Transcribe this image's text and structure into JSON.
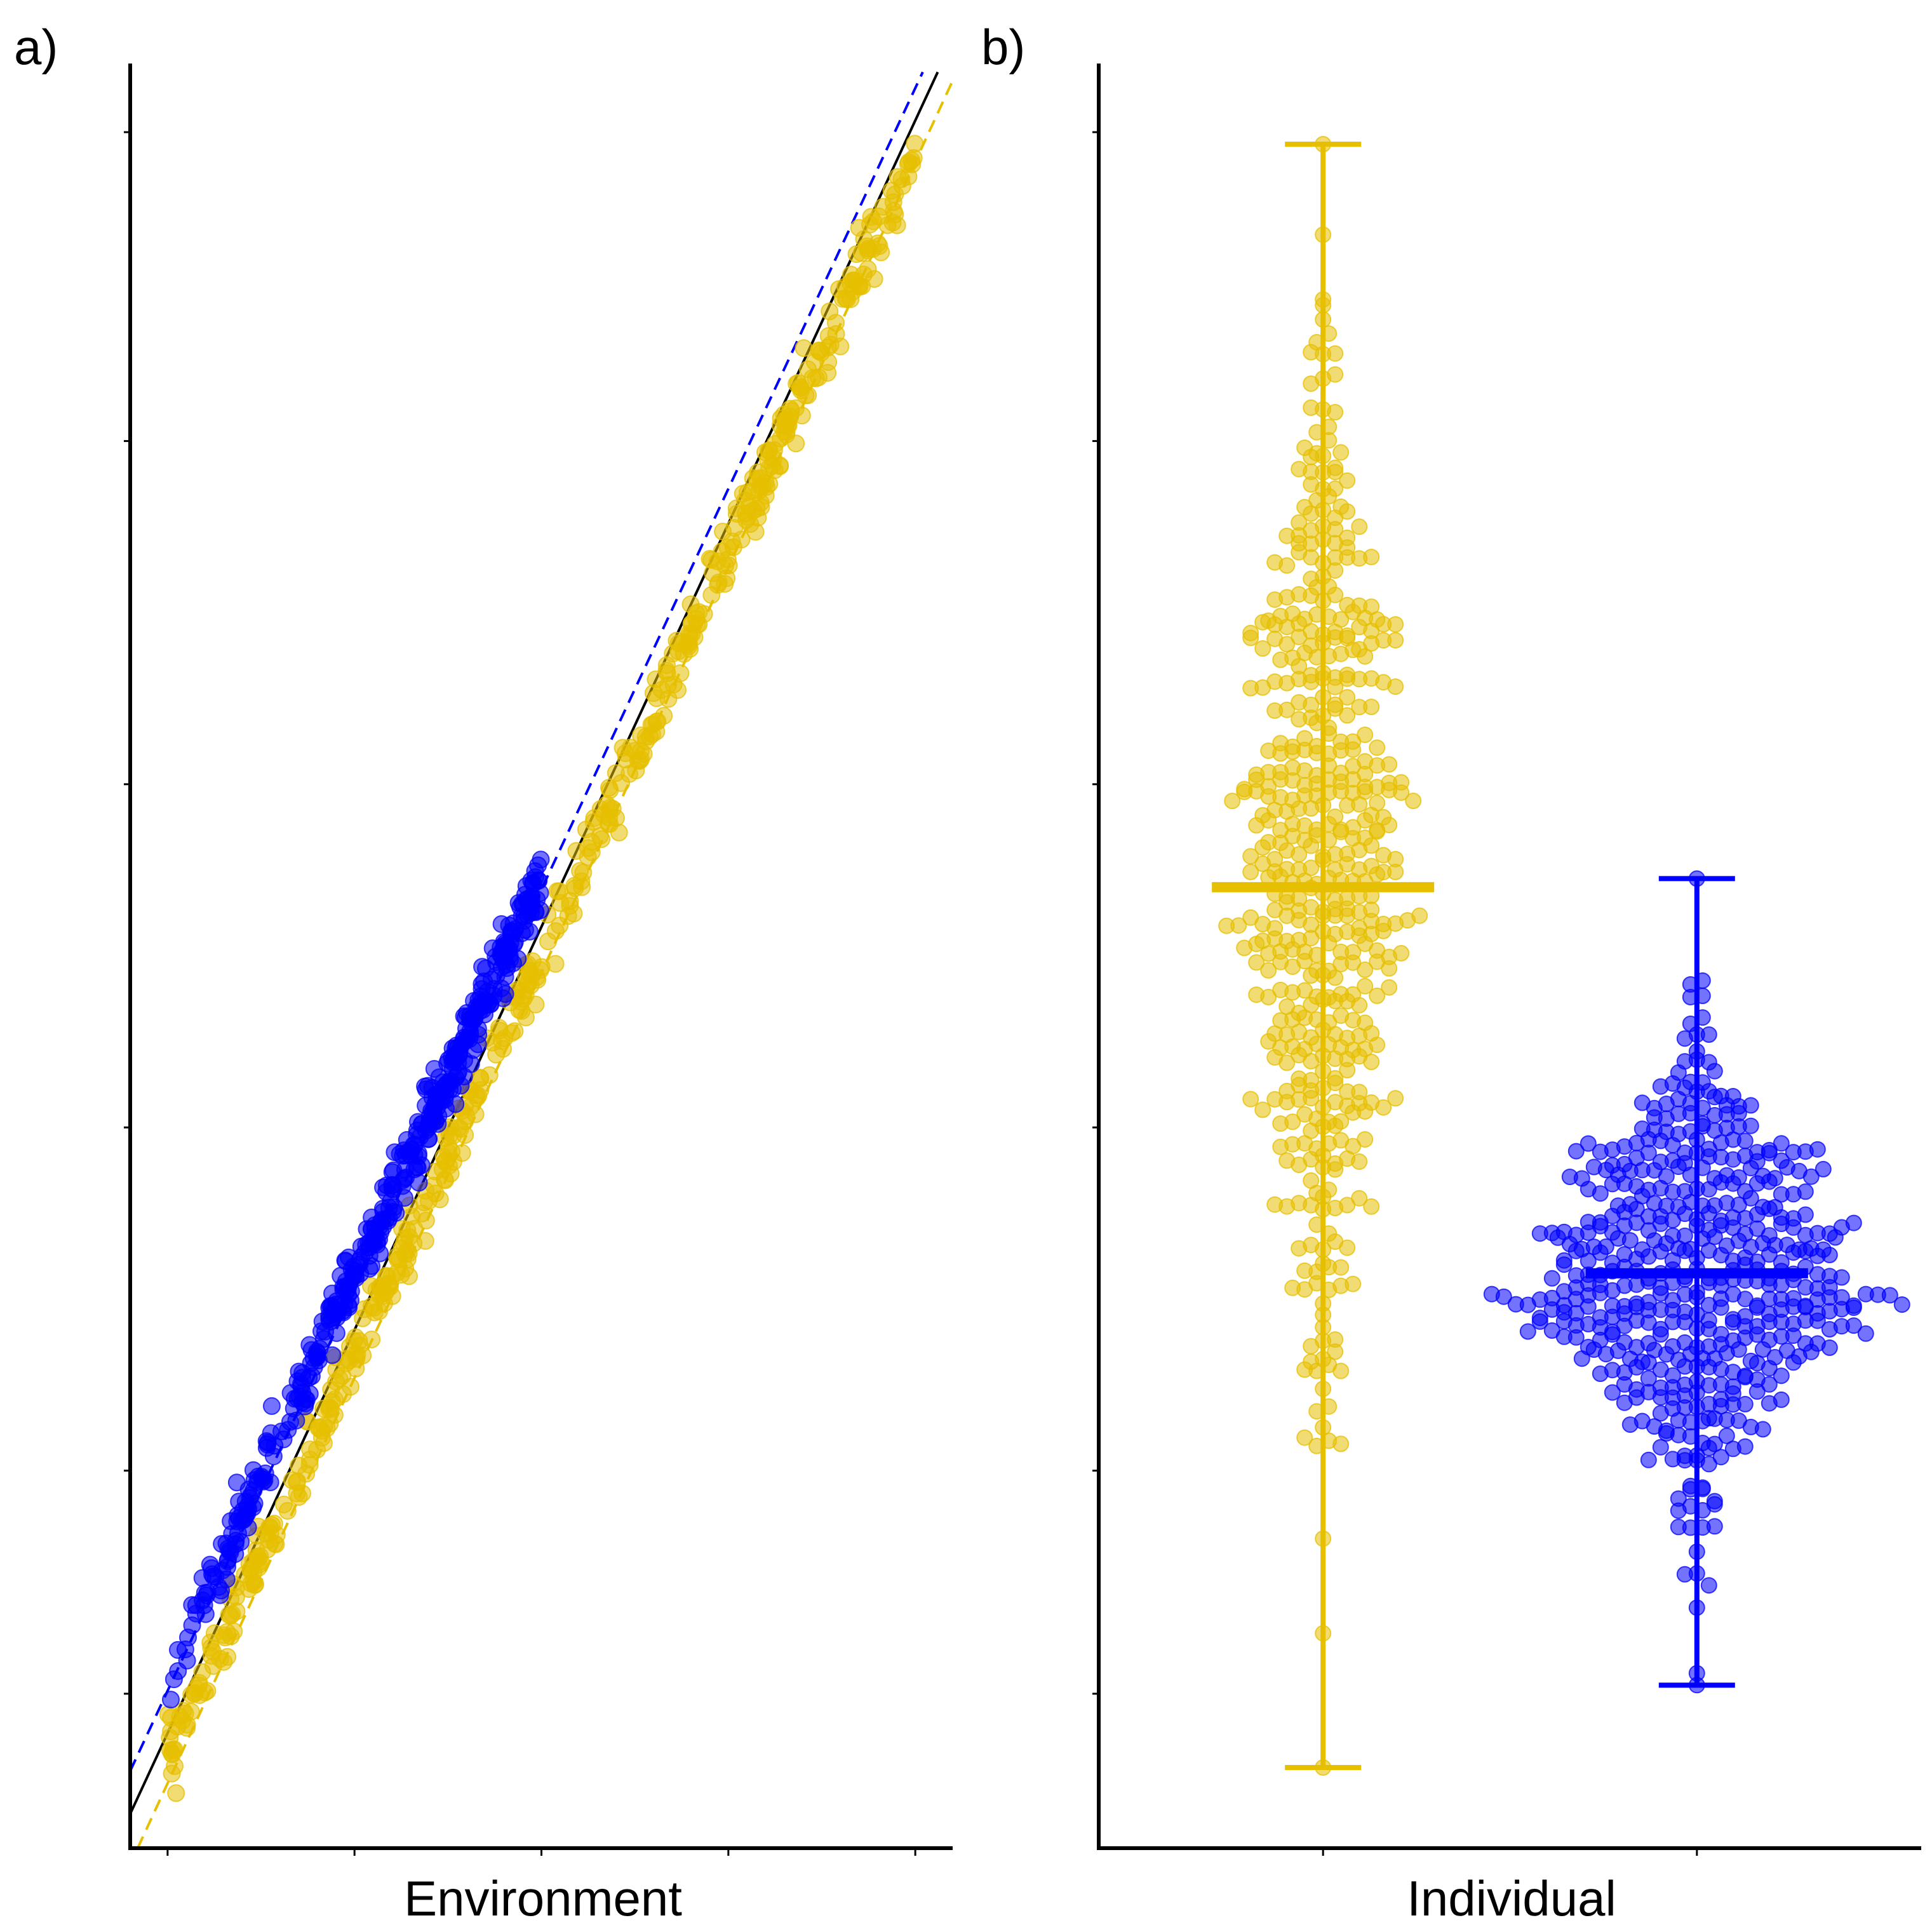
{
  "colors": {
    "yellow": "#e6bf00",
    "blue": "#0000ff",
    "black": "#000000"
  },
  "chart_data": [
    {
      "panel_label": "a)",
      "type": "scatter",
      "xlabel": "Environment",
      "ylabel": "",
      "xlim": [
        0,
        11
      ],
      "ylim": [
        0,
        10.4
      ],
      "x_ticks": [
        0.5,
        3,
        5.5,
        8,
        10.5
      ],
      "y_ticks": [
        0.9,
        2.2,
        4.2,
        6.2,
        8.2,
        10.0
      ],
      "x_tick_labels": [],
      "y_tick_labels": [],
      "grid": false,
      "legend": "none",
      "lines": [
        {
          "color": "#000000",
          "style": "solid",
          "x": [
            0,
            10.8
          ],
          "y": [
            0.2,
            10.35
          ]
        },
        {
          "color": "#0000ff",
          "style": "dashed",
          "x": [
            0,
            10.6
          ],
          "y": [
            0.45,
            10.35
          ]
        },
        {
          "color": "#e6bf00",
          "style": "dashed",
          "x": [
            0.1,
            11.0
          ],
          "y": [
            0.0,
            10.3
          ]
        }
      ],
      "series": [
        {
          "color": "#0000ff",
          "n": 450,
          "x_range": [
            0.5,
            5.5
          ],
          "slope": 0.936,
          "intercept": 0.52,
          "noise": 0.09
        },
        {
          "color": "#e6bf00",
          "n": 520,
          "x_range": [
            0.5,
            10.5
          ],
          "slope": 0.936,
          "intercept": 0.06,
          "noise": 0.09
        }
      ]
    },
    {
      "panel_label": "b)",
      "type": "scatter",
      "xlabel": "Individual",
      "ylabel": "",
      "xlim": [
        0.4,
        2.6
      ],
      "ylim": [
        0,
        10.4
      ],
      "x_ticks": [
        1,
        2
      ],
      "y_ticks": [
        0.9,
        2.2,
        4.2,
        6.2,
        8.2,
        10.0
      ],
      "x_tick_labels": [],
      "y_tick_labels": [],
      "grid": false,
      "legend": "none",
      "groups": [
        {
          "x": 1,
          "color": "#e6bf00",
          "mean": 5.6,
          "min": 0.47,
          "max": 9.93,
          "sd": 1.45,
          "n": 520
        },
        {
          "x": 2,
          "color": "#0000ff",
          "mean": 3.35,
          "min": 0.95,
          "max": 5.65,
          "sd": 0.62,
          "n": 520
        }
      ]
    }
  ]
}
